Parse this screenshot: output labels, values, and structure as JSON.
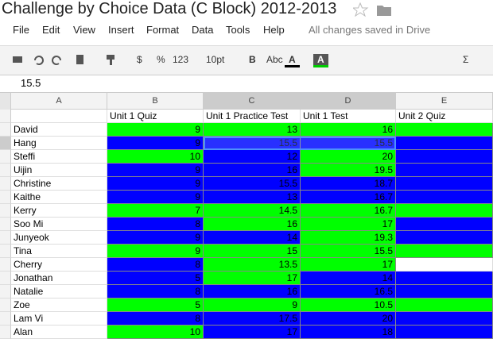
{
  "title": "Challenge by Choice Data (C Block) 2012-2013",
  "menu": [
    "File",
    "Edit",
    "View",
    "Insert",
    "Format",
    "Data",
    "Tools",
    "Help"
  ],
  "status": "All changes saved in Drive",
  "toolbar": [
    "$",
    "%",
    "123",
    "10pt",
    "B",
    "Abc",
    "A",
    "A",
    "Σ"
  ],
  "formula": "15.5",
  "columns": [
    "A",
    "B",
    "C",
    "D",
    "E"
  ],
  "headers": [
    "",
    "Unit 1 Quiz",
    "Unit 1 Practice Test",
    "Unit 1 Test",
    "Unit 2 Quiz"
  ],
  "rows": [
    {
      "name": "David",
      "cells": [
        {
          "text": "9",
          "fill": "#00ff00"
        },
        {
          "text": "13",
          "fill": "#00ff00"
        },
        {
          "text": "16",
          "fill": "#00ff00"
        },
        {
          "text": "",
          "fill": "#00ff00"
        }
      ]
    },
    {
      "name": "Hang",
      "cells": [
        {
          "text": "9",
          "fill": "#0000ff"
        },
        {
          "text": "15.5",
          "fill": "#0000ff"
        },
        {
          "text": "15.5",
          "fill": "#0000ff"
        },
        {
          "text": "",
          "fill": "#0000ff"
        }
      ]
    },
    {
      "name": "Steffi",
      "cells": [
        {
          "text": "10",
          "fill": "#00ff00"
        },
        {
          "text": "12",
          "fill": "#0000ff"
        },
        {
          "text": "20",
          "fill": "#00ff00"
        },
        {
          "text": "",
          "fill": "#0000ff"
        }
      ]
    },
    {
      "name": "Uijin",
      "cells": [
        {
          "text": "9",
          "fill": "#0000ff"
        },
        {
          "text": "16",
          "fill": "#0000ff"
        },
        {
          "text": "19.5",
          "fill": "#00ff00"
        },
        {
          "text": "",
          "fill": "#0000ff"
        }
      ]
    },
    {
      "name": "Christine",
      "cells": [
        {
          "text": "9",
          "fill": "#0000ff"
        },
        {
          "text": "15.5",
          "fill": "#0000ff"
        },
        {
          "text": "18.7",
          "fill": "#0000ff"
        },
        {
          "text": "",
          "fill": "#0000ff"
        }
      ]
    },
    {
      "name": "Kaithe",
      "cells": [
        {
          "text": "9",
          "fill": "#0000ff"
        },
        {
          "text": "13",
          "fill": "#0000ff"
        },
        {
          "text": "16.7",
          "fill": "#0000ff"
        },
        {
          "text": "",
          "fill": "#0000ff"
        }
      ]
    },
    {
      "name": "Kerry",
      "cells": [
        {
          "text": "7",
          "fill": "#00ff00"
        },
        {
          "text": "14.5",
          "fill": "#00ff00"
        },
        {
          "text": "16.7",
          "fill": "#00ff00"
        },
        {
          "text": "",
          "fill": "#00ff00"
        }
      ]
    },
    {
      "name": "Soo Mi",
      "cells": [
        {
          "text": "8",
          "fill": "#0000ff"
        },
        {
          "text": "16",
          "fill": "#00ff00"
        },
        {
          "text": "17",
          "fill": "#00ff00"
        },
        {
          "text": "",
          "fill": "#0000ff"
        }
      ]
    },
    {
      "name": "Junyeok",
      "cells": [
        {
          "text": "9",
          "fill": "#0000ff"
        },
        {
          "text": "14",
          "fill": "#0000ff"
        },
        {
          "text": "19.3",
          "fill": "#00ff00"
        },
        {
          "text": "",
          "fill": "#0000ff"
        }
      ]
    },
    {
      "name": "Tina",
      "cells": [
        {
          "text": "9",
          "fill": "#00ff00"
        },
        {
          "text": "15",
          "fill": "#00ff00"
        },
        {
          "text": "15.5",
          "fill": "#00ff00"
        },
        {
          "text": "",
          "fill": "#00ff00"
        }
      ]
    },
    {
      "name": "Cherry",
      "cells": [
        {
          "text": "8",
          "fill": "#0000ff"
        },
        {
          "text": "13.5",
          "fill": "#00ff00"
        },
        {
          "text": "17",
          "fill": "#00ff00"
        },
        {
          "text": "",
          "fill": "#ffffff"
        }
      ]
    },
    {
      "name": "Jonathan",
      "cells": [
        {
          "text": "5",
          "fill": "#0000ff"
        },
        {
          "text": "17",
          "fill": "#00ff00"
        },
        {
          "text": "14",
          "fill": "#0000ff"
        },
        {
          "text": "",
          "fill": "#0000ff"
        }
      ]
    },
    {
      "name": "Natalie",
      "cells": [
        {
          "text": "8",
          "fill": "#0000ff"
        },
        {
          "text": "16",
          "fill": "#0000ff"
        },
        {
          "text": "16.5",
          "fill": "#0000ff"
        },
        {
          "text": "",
          "fill": "#0000ff"
        }
      ]
    },
    {
      "name": "Zoe",
      "cells": [
        {
          "text": "5",
          "fill": "#00ff00"
        },
        {
          "text": "9",
          "fill": "#00ff00"
        },
        {
          "text": "10.5",
          "fill": "#00ff00"
        },
        {
          "text": "",
          "fill": "#00ff00"
        }
      ]
    },
    {
      "name": "Lam Vi",
      "cells": [
        {
          "text": "8",
          "fill": "#0000ff"
        },
        {
          "text": "17.5",
          "fill": "#0000ff"
        },
        {
          "text": "20",
          "fill": "#0000ff"
        },
        {
          "text": "",
          "fill": "#0000ff"
        }
      ]
    },
    {
      "name": "Alan",
      "cells": [
        {
          "text": "10",
          "fill": "#00ff00"
        },
        {
          "text": "17",
          "fill": "#0000ff"
        },
        {
          "text": "18",
          "fill": "#0000ff"
        },
        {
          "text": "",
          "fill": "#0000ff"
        }
      ]
    }
  ]
}
